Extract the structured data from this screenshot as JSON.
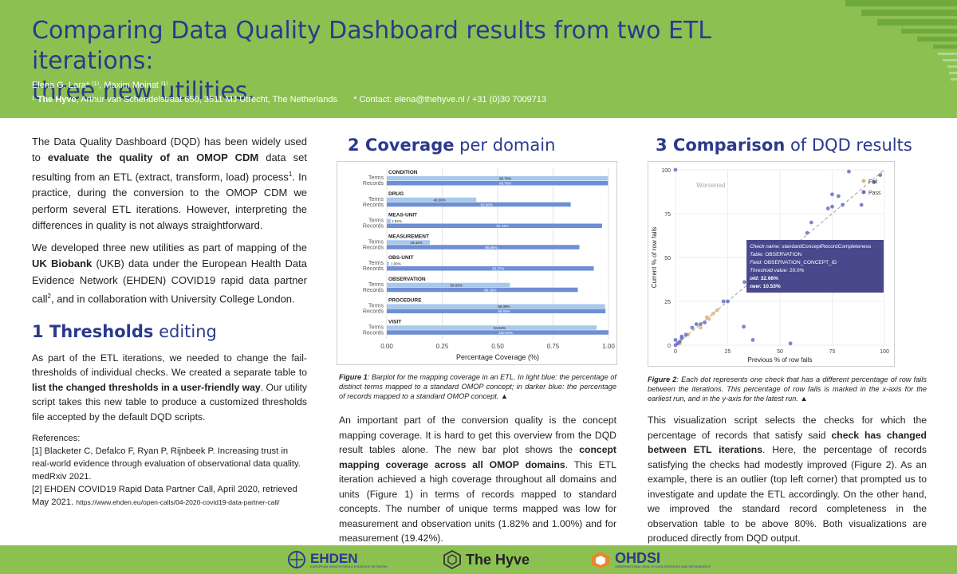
{
  "header": {
    "title_line1": "Comparing Data Quality Dashboard results from two ETL iterations:",
    "title_line2": "three new utilities.",
    "authors": "Elena G. Lara* ⁽¹⁾, Maxim Moinat ⁽¹⁾",
    "affil_mark": "¹",
    "affil_org": "The Hyve",
    "affil_address": ", Arthur van Schendelstraat 650, 3511 MJ Utrecht, The Netherlands",
    "contact": "* Contact: elena@thehyve.nl / +31 (0)30 7009713"
  },
  "intro": {
    "p1_a": "The Data Quality Dashboard (DQD) has been widely used to ",
    "p1_b": "evaluate the quality of an OMOP CDM",
    "p1_c": " data set resulting from an ETL (extract, transform, load) process",
    "p1_sup": "1",
    "p1_d": ". In practice, during the conversion to the OMOP CDM we perform several ETL iterations. However, interpreting the differences in quality is not always straightforward.",
    "p2_a": "We developed three new utilities as part of mapping of the ",
    "p2_b": "UK Biobank",
    "p2_c": " (UKB) data under the European Health Data Evidence Network (EHDEN) COVID19 rapid data partner call",
    "p2_sup": "2",
    "p2_d": ", and in collaboration with University College London."
  },
  "section1": {
    "num_bold": "1 Thresholds",
    "rest": " editing",
    "p_a": "As part of the ETL iterations, we needed to change the fail-thresholds of individual checks. We created a separate table to ",
    "p_b": "list the changed thresholds in a user-friendly way",
    "p_c": ". Our utility script takes this new table to produce a customized thresholds file accepted by the default DQD scripts."
  },
  "references": {
    "heading": "References:",
    "ref1": "[1] Blacketer C, Defalco F, Ryan P, Rijnbeek P. Increasing trust in real-world evidence through evaluation of observational data quality. medRxiv 2021.",
    "ref2_a": "[2] EHDEN COVID19 Rapid Data Partner Call, April 2020, retrieved May 2021. ",
    "ref2_url": "https://www.ehden.eu/open-calls/04-2020-covid19-data-partner-call/"
  },
  "section2": {
    "num_bold": "2 Coverage",
    "rest": " per domain",
    "caption_label": "Figure 1",
    "caption_text": ": Barplot for the mapping coverage in an ETL. In light blue: the percentage of distinct terms mapped to a standard OMOP concept; in darker blue: the percentage of records mapped to a standard OMOP concept. ▲",
    "p_a": "An important part of the conversion quality is the concept mapping coverage. It is hard to get this overview from the DQD result tables alone. The new bar plot shows the ",
    "p_b": "concept mapping coverage across all OMOP domains",
    "p_c": ". This ETL iteration achieved a high coverage throughout all domains and units (Figure 1) in terms of records mapped to standard concepts. The number of unique terms mapped was low for measurement and observation units (1.82% and 1.00%) and for measurement (19.42%)."
  },
  "section3": {
    "num_bold": "3 Comparison",
    "rest": " of DQD results",
    "caption_label": "Figure 2",
    "caption_text": ": Each dot represents one check that has a different percentage of row fails between the iterations. This percentage of row fails is marked in the x-axis for the earliest run, and in the y-axis for the latest run. ▲",
    "p_a": "This visualization script selects the checks for which the percentage of records that satisfy said ",
    "p_b": "check has changed between ETL iterations",
    "p_c": ". Here, the percentage of records satisfying the checks had modestly improved (Figure 2). As an example, there is an outlier (top left corner) that prompted us to investigate and update the ETL accordingly. On the other hand, we improved the standard record completeness in the observation table to be above 80%. Both visualizations are produced directly from DQD output."
  },
  "footer": {
    "logo1": "EHDEN",
    "logo1_sub": "EUROPEAN HEALTH DATA & EVIDENCE NETWORK",
    "logo2": "The Hyve",
    "logo3": "OHDSI",
    "logo3_sub": "OBSERVATIONAL HEALTH DATA SCIENCES AND INFORMATICS"
  },
  "colors": {
    "header_green": "#8cc152",
    "title_blue": "#2b3a8c",
    "terms_bar": "#a8c8ec",
    "records_bar": "#6f8fd4",
    "fail_dot": "#e6b07c",
    "pass_dot": "#6a6fc0",
    "tooltip_bg": "#3d3f86"
  },
  "chart_data": [
    {
      "type": "bar",
      "orientation": "horizontal",
      "categories": [
        "CONDITION",
        "DRUG",
        "MEAS-UNIT",
        "MEASUREMENT",
        "OBS-UNIT",
        "OBSERVATION",
        "PROCEDURE",
        "VISIT"
      ],
      "series": [
        {
          "name": "Terms",
          "values": [
            0.9976,
            0.4036,
            0.0182,
            0.1942,
            0.01,
            0.5553,
            0.9839,
            0.9464
          ]
        },
        {
          "name": "Records",
          "values": [
            0.9976,
            0.8296,
            0.9711,
            0.8686,
            0.9337,
            0.8618,
            0.9865,
            1.0
          ]
        }
      ],
      "data_labels": {
        "Terms": [
          "99.76%",
          "40.36%",
          "1.82%",
          "19.42%",
          "1.00%",
          "55.53%",
          "98.39%",
          "94.64%"
        ],
        "Records": [
          "99.76%",
          "82.96%",
          "97.11%",
          "86.86%",
          "93.37%",
          "86.18%",
          "98.65%",
          "100.00%"
        ]
      },
      "xlabel": "Percentage Coverage (%)",
      "xlim": [
        0,
        1
      ],
      "xticks": [
        "0.00",
        "0.25",
        "0.50",
        "0.75",
        "1.00"
      ],
      "grid": true
    },
    {
      "type": "scatter",
      "xlabel": "Previous % of row fails",
      "ylabel": "Current % of row fails",
      "xlim": [
        0,
        100
      ],
      "ylim": [
        0,
        100
      ],
      "xticks": [
        "0",
        "25",
        "50",
        "75",
        "100"
      ],
      "yticks": [
        "0",
        "25",
        "50",
        "75",
        "100"
      ],
      "region_label": "Worsened",
      "legend": [
        "Fail",
        "Pass"
      ],
      "legend_position": "top-right",
      "reference_line": "y = x",
      "series": [
        {
          "name": "Fail",
          "points": [
            [
              20,
              20
            ],
            [
              15,
              16
            ],
            [
              18,
              18
            ],
            [
              16,
              15
            ],
            [
              6,
              6
            ],
            [
              12,
              10
            ],
            [
              2,
              1
            ]
          ]
        },
        {
          "name": "Pass",
          "points": [
            [
              0,
              100
            ],
            [
              83,
              99
            ],
            [
              98,
              97
            ],
            [
              95,
              93
            ],
            [
              75,
              86
            ],
            [
              78,
              85
            ],
            [
              80,
              80
            ],
            [
              73,
              78
            ],
            [
              75,
              79
            ],
            [
              89,
              80
            ],
            [
              65,
              70
            ],
            [
              63,
              64
            ],
            [
              52,
              58
            ],
            [
              40,
              40
            ],
            [
              33,
              36
            ],
            [
              25,
              25
            ],
            [
              23,
              25
            ],
            [
              10,
              12
            ],
            [
              8,
              10
            ],
            [
              5,
              6
            ],
            [
              3,
              5
            ],
            [
              2,
              2
            ],
            [
              1,
              1
            ],
            [
              0,
              0
            ],
            [
              0,
              3
            ],
            [
              3,
              4
            ],
            [
              12,
              12
            ],
            [
              14,
              13
            ],
            [
              32.66,
              10.53
            ],
            [
              37,
              3
            ],
            [
              55,
              1
            ]
          ]
        }
      ],
      "tooltip": {
        "check_name_label": "Check name",
        "check_name": "standardConceptRecordCompleteness",
        "table_label": "Table",
        "table": "OBSERVATION",
        "field_label": "Field",
        "field": "OBSERVATION_CONCEPT_ID",
        "threshold_label": "Threshold value",
        "threshold": "20.0%",
        "old_label": "old",
        "old": "32.66%",
        "new_label": "new",
        "new": "10.53%"
      }
    }
  ]
}
